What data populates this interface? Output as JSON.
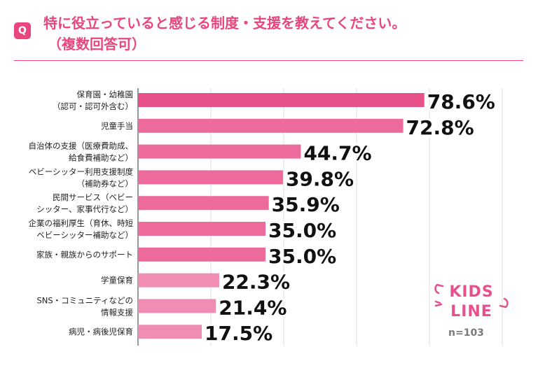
{
  "title": {
    "badge": "Q",
    "line1": "特に役立っていると感じる制度・支援を教えてください。",
    "line2": "（複数回答可）"
  },
  "chart_data": {
    "type": "bar",
    "orientation": "horizontal",
    "categories": [
      [
        "保育園・幼稚園",
        "（認可・認可外含む）"
      ],
      [
        "児童手当"
      ],
      [
        "自治体の支援（医療費助成、",
        "給食費補助など）"
      ],
      [
        "ベビーシッター利用支援制度",
        "（補助券など）"
      ],
      [
        "民間サービス（ベビー",
        "シッター、家事代行など）"
      ],
      [
        "企業の福利厚生（育休、時短",
        "ベビーシッター補助など）"
      ],
      [
        "家族・親族からのサポート"
      ],
      [
        "学童保育"
      ],
      [
        "SNS・コミュニティなどの",
        "情報支援"
      ],
      [
        "病児・病後児保育"
      ]
    ],
    "values": [
      78.6,
      72.8,
      44.7,
      39.8,
      35.9,
      35.0,
      35.0,
      22.3,
      21.4,
      17.5
    ],
    "value_labels": [
      "78.6%",
      "72.8%",
      "44.7%",
      "39.8%",
      "35.9%",
      "35.0%",
      "35.0%",
      "22.3%",
      "21.4%",
      "17.5%"
    ],
    "xlim": [
      0,
      100
    ],
    "grid": true,
    "colors": [
      "#e8508b",
      "#ec6a9c",
      "#ec6a9c",
      "#ec6a9c",
      "#ec6a9c",
      "#ec6a9c",
      "#ec6a9c",
      "#ef8db4",
      "#ef8db4",
      "#ef8db4"
    ]
  },
  "logo": {
    "line1": "KIDS",
    "line2": "LINE",
    "color": "#e6508e"
  },
  "sample": "n=103"
}
